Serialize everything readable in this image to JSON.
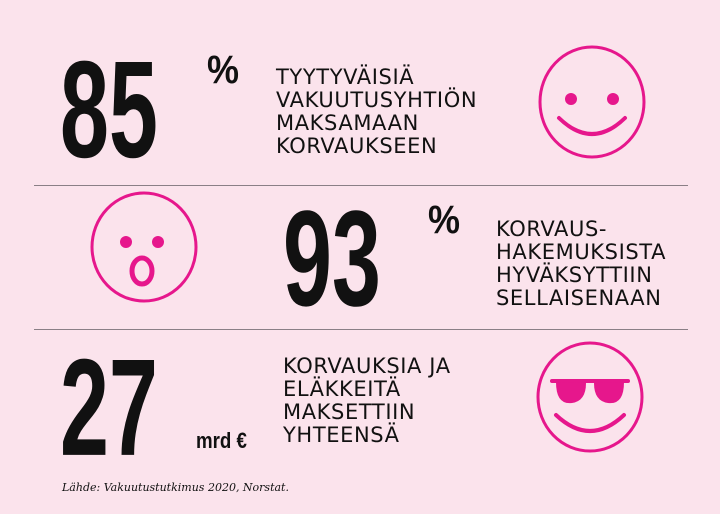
{
  "colors": {
    "background": "#fbe3ec",
    "accent": "#e6178c",
    "text": "#111111",
    "divider": "#8a7f86"
  },
  "stats": [
    {
      "number": "85",
      "unit": "%",
      "lines": [
        "TYYTYVÄISIÄ",
        "VAKUUTUSYHTIÖN",
        "MAKSAMAAN",
        "KORVAUKSEEN"
      ],
      "icon": "smiley-face-icon"
    },
    {
      "number": "93",
      "unit": "%",
      "lines": [
        "KORVAUS-",
        "HAKEMUKSISTA",
        "HYVÄKSYTTIIN",
        "SELLAISENAAN"
      ],
      "icon": "surprised-face-icon"
    },
    {
      "number": "27",
      "unit": "mrd €",
      "lines": [
        "KORVAUKSIA JA",
        "ELÄKKEITÄ",
        "MAKSETTIIN",
        "YHTEENSÄ"
      ],
      "icon": "sunglasses-face-icon"
    }
  ],
  "source": "Lähde:  Vakuutustutkimus 2020,  Norstat."
}
